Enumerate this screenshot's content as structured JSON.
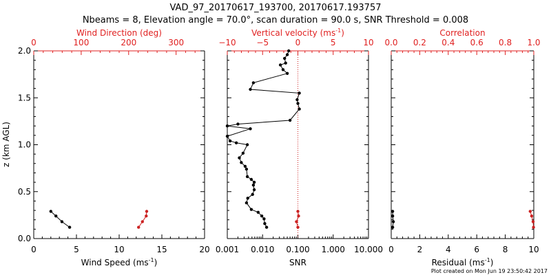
{
  "title": "VAD_97_20170617_193700, 20170617.193757",
  "subtitle": "Nbeams = 8, Elevation angle = 70.0°, scan duration = 90.0 s, SNR Threshold = 0.008",
  "footer": "Plot created on Mon Jun 19 23:50:42 2017",
  "colors": {
    "black": "#000000",
    "red": "#cc2222",
    "axis_red": "#e02020"
  },
  "chart_data": [
    {
      "type": "line",
      "ylabel": "z (km AGL)",
      "ylim": [
        0,
        2.0
      ],
      "yticks": [
        "0.0",
        "0.5",
        "1.0",
        "1.5",
        "2.0"
      ],
      "bottom_axis": {
        "label": "Wind Speed (ms",
        "unit_sup": "-1",
        "label_end": ")",
        "range": [
          0,
          20
        ],
        "ticks": [
          "0",
          "5",
          "10",
          "15",
          "20"
        ]
      },
      "top_axis": {
        "label": "Wind Direction (deg)",
        "range": [
          0,
          360
        ],
        "ticks": [
          "0",
          "100",
          "200",
          "300"
        ]
      },
      "series": [
        {
          "axis": "bottom",
          "color": "#000000",
          "x": [
            2.0,
            2.6,
            3.3,
            4.2
          ],
          "y": [
            0.29,
            0.24,
            0.18,
            0.12
          ]
        },
        {
          "axis": "top",
          "color": "#cc2222",
          "x": [
            221,
            229,
            237,
            238
          ],
          "y": [
            0.12,
            0.18,
            0.24,
            0.29
          ]
        }
      ]
    },
    {
      "type": "line",
      "ylim": [
        0,
        2.0
      ],
      "bottom_axis": {
        "label": "SNR",
        "scale": "log",
        "range": [
          0.001,
          10
        ],
        "ticks": [
          "0.001",
          "0.010",
          "0.100",
          "1.000",
          "10.000"
        ]
      },
      "top_axis": {
        "label": "Vertical velocity (ms",
        "unit_sup": "-1",
        "label_end": ")",
        "range": [
          -10,
          10
        ],
        "ticks": [
          "−10",
          "−5",
          "0",
          "5",
          "10"
        ]
      },
      "reference_line": {
        "axis": "top",
        "x": 0,
        "style": "dotted",
        "color": "#cc2222"
      },
      "series": [
        {
          "axis": "bottom",
          "color": "#000000",
          "x": [
            0.013,
            0.0115,
            0.011,
            0.0095,
            0.0075,
            0.0048,
            0.0035,
            0.0038,
            0.0052,
            0.0058,
            0.0055,
            0.0058,
            0.0048,
            0.0037,
            0.0035,
            0.0032,
            0.0025,
            0.0022,
            0.0028,
            0.0037,
            0.0018,
            0.0012,
            0.001,
            0.0045,
            0.001,
            0.002,
            0.06,
            0.11,
            0.1,
            0.095,
            0.11,
            0.0045,
            0.0055,
            0.05,
            0.038,
            0.032,
            0.045,
            0.042,
            0.05,
            0.055
          ],
          "y": [
            0.12,
            0.16,
            0.21,
            0.24,
            0.28,
            0.31,
            0.38,
            0.43,
            0.47,
            0.52,
            0.57,
            0.6,
            0.63,
            0.66,
            0.74,
            0.77,
            0.81,
            0.86,
            0.91,
            1.0,
            1.02,
            1.04,
            1.09,
            1.17,
            1.2,
            1.22,
            1.26,
            1.38,
            1.44,
            1.48,
            1.55,
            1.59,
            1.66,
            1.76,
            1.8,
            1.85,
            1.87,
            1.92,
            1.96,
            2.0
          ]
        },
        {
          "axis": "top",
          "color": "#cc2222",
          "x": [
            0,
            -0.2,
            0.1,
            0
          ],
          "y": [
            0.12,
            0.18,
            0.24,
            0.29
          ]
        }
      ]
    },
    {
      "type": "line",
      "bottom_axis": {
        "label": "Residual (ms",
        "unit_sup": "-1",
        "label_end": ")",
        "range": [
          0,
          10
        ],
        "ticks": [
          "0",
          "2",
          "4",
          "6",
          "8",
          "10"
        ]
      },
      "top_axis": {
        "label": "Correlation",
        "range": [
          0,
          1
        ],
        "ticks": [
          "0.0",
          "0.2",
          "0.4",
          "0.6",
          "0.8",
          "1.0"
        ]
      },
      "ylim": [
        0,
        2.0
      ],
      "series": [
        {
          "axis": "bottom",
          "color": "#000000",
          "x": [
            0.1,
            0.15,
            0.1,
            0.1
          ],
          "y": [
            0.12,
            0.18,
            0.24,
            0.29
          ]
        },
        {
          "axis": "top",
          "color": "#cc2222",
          "x": [
            0.998,
            0.995,
            0.985,
            0.975
          ],
          "y": [
            0.12,
            0.18,
            0.24,
            0.29
          ]
        }
      ]
    }
  ]
}
